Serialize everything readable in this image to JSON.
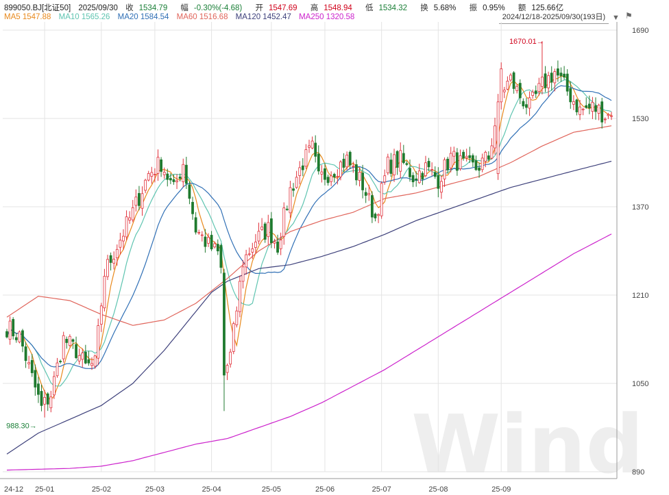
{
  "header": {
    "code": "899050.BJ[北证50]",
    "date": "2025/09/30",
    "close_label": "收",
    "close": "1534.79",
    "chg_label": "幅",
    "chg": "-0.30%(-4.68)",
    "open_label": "开",
    "open": "1547.69",
    "high_label": "高",
    "high": "1548.94",
    "low_label": "低",
    "low": "1534.32",
    "turnover_label": "换",
    "turnover": "5.68%",
    "amp_label": "振",
    "amp": "0.95%",
    "amount_label": "额",
    "amount": "125.66亿"
  },
  "ma_legend": [
    {
      "label": "MA5 1547.88",
      "color": "#e8891c"
    },
    {
      "label": "MA10 1565.26",
      "color": "#5ec4b0"
    },
    {
      "label": "MA20 1584.54",
      "color": "#2f6fb5"
    },
    {
      "label": "MA60 1516.68",
      "color": "#e0645a"
    },
    {
      "label": "MA120 1452.47",
      "color": "#3c3f7a"
    },
    {
      "label": "MA250 1320.58",
      "color": "#cc22cc"
    }
  ],
  "range_label": "2024/12/18-2025/09/30(193日)",
  "watermark": "Wind",
  "chart_data": {
    "type": "candlestick",
    "ylim": [
      890,
      1690
    ],
    "yticks": [
      890,
      1050,
      1210,
      1370,
      1530,
      1690
    ],
    "xticks": [
      "24-12",
      "25-01",
      "25-02",
      "25-03",
      "25-04",
      "25-05",
      "25-06",
      "25-07",
      "25-08",
      "25-09"
    ],
    "xtick_index": [
      0,
      12,
      30,
      47,
      65,
      84,
      101,
      119,
      137,
      157
    ],
    "n": 193,
    "annotations": [
      {
        "text": "1670.01",
        "index": 170,
        "value": 1670.01,
        "kind": "high"
      },
      {
        "text": "988.30",
        "index": 12,
        "value": 988.3,
        "kind": "low"
      }
    ],
    "close_key": [
      [
        0,
        1152
      ],
      [
        4,
        1135
      ],
      [
        8,
        1060
      ],
      [
        11,
        1005
      ],
      [
        14,
        1030
      ],
      [
        18,
        1130
      ],
      [
        22,
        1110
      ],
      [
        25,
        1080
      ],
      [
        28,
        1085
      ],
      [
        31,
        1250
      ],
      [
        35,
        1300
      ],
      [
        40,
        1360
      ],
      [
        45,
        1430
      ],
      [
        49,
        1450
      ],
      [
        53,
        1400
      ],
      [
        56,
        1450
      ],
      [
        60,
        1330
      ],
      [
        64,
        1300
      ],
      [
        67,
        1285
      ],
      [
        69,
        1065
      ],
      [
        71,
        1100
      ],
      [
        75,
        1270
      ],
      [
        79,
        1310
      ],
      [
        83,
        1330
      ],
      [
        86,
        1300
      ],
      [
        90,
        1400
      ],
      [
        94,
        1450
      ],
      [
        97,
        1475
      ],
      [
        99,
        1420
      ],
      [
        103,
        1435
      ],
      [
        108,
        1455
      ],
      [
        113,
        1410
      ],
      [
        117,
        1350
      ],
      [
        121,
        1445
      ],
      [
        125,
        1455
      ],
      [
        129,
        1425
      ],
      [
        133,
        1440
      ],
      [
        137,
        1420
      ],
      [
        141,
        1460
      ],
      [
        145,
        1445
      ],
      [
        149,
        1440
      ],
      [
        153,
        1460
      ],
      [
        157,
        1580
      ],
      [
        160,
        1600
      ],
      [
        163,
        1570
      ],
      [
        166,
        1550
      ],
      [
        170,
        1590
      ],
      [
        174,
        1615
      ],
      [
        178,
        1580
      ],
      [
        182,
        1545
      ],
      [
        186,
        1550
      ],
      [
        188,
        1545
      ],
      [
        190,
        1536
      ],
      [
        192,
        1534.79
      ]
    ],
    "ma_series": [
      {
        "name": "MA5",
        "color": "#e8891c",
        "smooth": 5
      },
      {
        "name": "MA10",
        "color": "#5ec4b0",
        "smooth": 10
      },
      {
        "name": "MA20",
        "color": "#2f6fb5",
        "smooth": 20
      },
      {
        "name": "MA60",
        "color": "#e0645a",
        "key": [
          [
            0,
            1170
          ],
          [
            10,
            1208
          ],
          [
            20,
            1200
          ],
          [
            30,
            1175
          ],
          [
            40,
            1155
          ],
          [
            50,
            1165
          ],
          [
            60,
            1195
          ],
          [
            70,
            1240
          ],
          [
            80,
            1290
          ],
          [
            90,
            1325
          ],
          [
            100,
            1345
          ],
          [
            110,
            1360
          ],
          [
            120,
            1385
          ],
          [
            130,
            1395
          ],
          [
            140,
            1410
          ],
          [
            150,
            1425
          ],
          [
            160,
            1450
          ],
          [
            170,
            1480
          ],
          [
            180,
            1505
          ],
          [
            192,
            1516.68
          ]
        ]
      },
      {
        "name": "MA120",
        "color": "#3c3f7a",
        "key": [
          [
            0,
            922
          ],
          [
            10,
            960
          ],
          [
            20,
            985
          ],
          [
            30,
            1010
          ],
          [
            40,
            1050
          ],
          [
            50,
            1110
          ],
          [
            60,
            1180
          ],
          [
            65,
            1215
          ],
          [
            70,
            1235
          ],
          [
            80,
            1258
          ],
          [
            90,
            1265
          ],
          [
            100,
            1280
          ],
          [
            110,
            1298
          ],
          [
            120,
            1320
          ],
          [
            130,
            1345
          ],
          [
            140,
            1365
          ],
          [
            150,
            1385
          ],
          [
            160,
            1405
          ],
          [
            170,
            1420
          ],
          [
            180,
            1435
          ],
          [
            192,
            1452.47
          ]
        ]
      },
      {
        "name": "MA250",
        "color": "#cc22cc",
        "key": [
          [
            0,
            893
          ],
          [
            20,
            896
          ],
          [
            30,
            900
          ],
          [
            40,
            910
          ],
          [
            50,
            925
          ],
          [
            60,
            940
          ],
          [
            70,
            950
          ],
          [
            80,
            970
          ],
          [
            90,
            990
          ],
          [
            100,
            1015
          ],
          [
            110,
            1045
          ],
          [
            120,
            1075
          ],
          [
            130,
            1110
          ],
          [
            140,
            1145
          ],
          [
            150,
            1180
          ],
          [
            160,
            1215
          ],
          [
            170,
            1250
          ],
          [
            180,
            1285
          ],
          [
            192,
            1320.58
          ]
        ]
      }
    ]
  }
}
